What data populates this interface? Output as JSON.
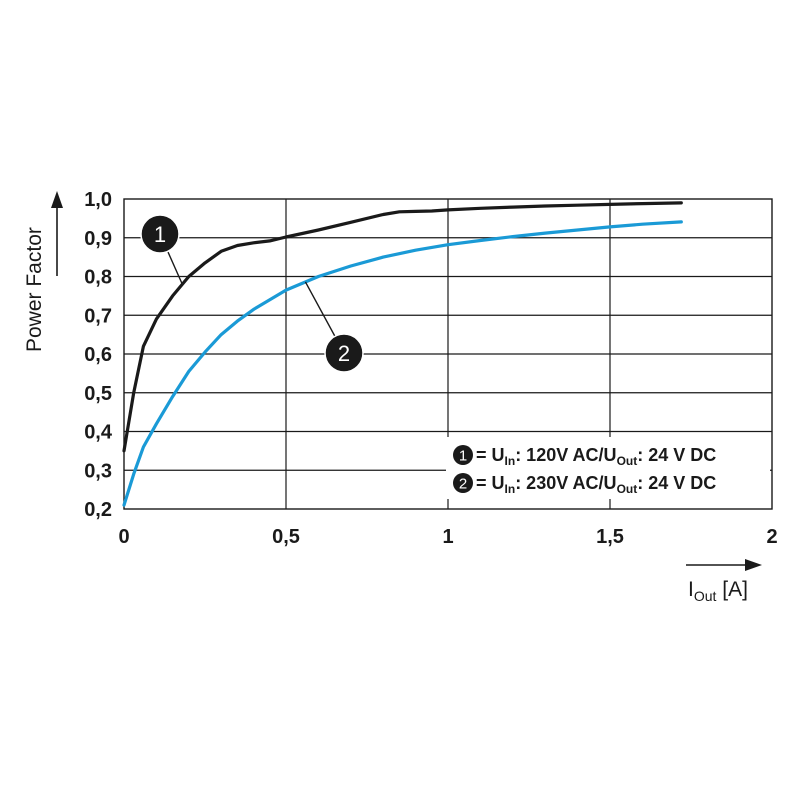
{
  "chart_data": {
    "type": "line",
    "xlabel_main": "I",
    "xlabel_sub": "Out",
    "xlabel_unit": " [A]",
    "ylabel": "Power Factor",
    "xlim": [
      0,
      2
    ],
    "ylim": [
      0.2,
      1.0
    ],
    "x_ticks": [
      {
        "value": 0,
        "label": "0"
      },
      {
        "value": 0.5,
        "label": "0,5"
      },
      {
        "value": 1,
        "label": "1"
      },
      {
        "value": 1.5,
        "label": "1,5"
      },
      {
        "value": 2,
        "label": "2"
      }
    ],
    "y_ticks": [
      {
        "value": 0.2,
        "label": "0,2"
      },
      {
        "value": 0.3,
        "label": "0,3"
      },
      {
        "value": 0.4,
        "label": "0,4"
      },
      {
        "value": 0.5,
        "label": "0,5"
      },
      {
        "value": 0.6,
        "label": "0,6"
      },
      {
        "value": 0.7,
        "label": "0,7"
      },
      {
        "value": 0.8,
        "label": "0,8"
      },
      {
        "value": 0.9,
        "label": "0,9"
      },
      {
        "value": 1.0,
        "label": "1,0"
      }
    ],
    "grid": true,
    "legend_position": "bottom-right",
    "series": [
      {
        "marker": "1",
        "color": "#1a1a1a",
        "legend": {
          "prefix": "= U",
          "sub1": "In",
          "mid": ": 120V AC/U",
          "sub2": "Out",
          "suffix": ": 24 V DC"
        },
        "x": [
          0.0,
          0.03,
          0.06,
          0.1,
          0.15,
          0.2,
          0.25,
          0.3,
          0.35,
          0.4,
          0.45,
          0.5,
          0.6,
          0.7,
          0.8,
          0.85,
          0.9,
          0.95,
          1.0,
          1.1,
          1.2,
          1.3,
          1.4,
          1.5,
          1.6,
          1.72
        ],
        "y": [
          0.35,
          0.5,
          0.62,
          0.69,
          0.75,
          0.8,
          0.835,
          0.865,
          0.88,
          0.887,
          0.892,
          0.902,
          0.92,
          0.94,
          0.96,
          0.967,
          0.968,
          0.969,
          0.972,
          0.976,
          0.979,
          0.982,
          0.984,
          0.986,
          0.988,
          0.99
        ]
      },
      {
        "marker": "2",
        "color": "#1a9ad6",
        "legend": {
          "prefix": "= U",
          "sub1": "In",
          "mid": ": 230V AC/U",
          "sub2": "Out",
          "suffix": ": 24 V DC"
        },
        "x": [
          0.0,
          0.03,
          0.06,
          0.1,
          0.15,
          0.2,
          0.25,
          0.3,
          0.35,
          0.4,
          0.45,
          0.5,
          0.6,
          0.7,
          0.8,
          0.9,
          1.0,
          1.1,
          1.2,
          1.3,
          1.4,
          1.5,
          1.6,
          1.72
        ],
        "y": [
          0.21,
          0.29,
          0.36,
          0.42,
          0.49,
          0.555,
          0.605,
          0.65,
          0.685,
          0.715,
          0.74,
          0.765,
          0.8,
          0.827,
          0.85,
          0.868,
          0.882,
          0.893,
          0.903,
          0.912,
          0.92,
          0.928,
          0.935,
          0.941
        ]
      }
    ],
    "callouts": [
      {
        "label": "1",
        "series": 0,
        "anchor_x": 0.18
      },
      {
        "label": "2",
        "series": 1,
        "anchor_x": 0.56
      }
    ]
  }
}
